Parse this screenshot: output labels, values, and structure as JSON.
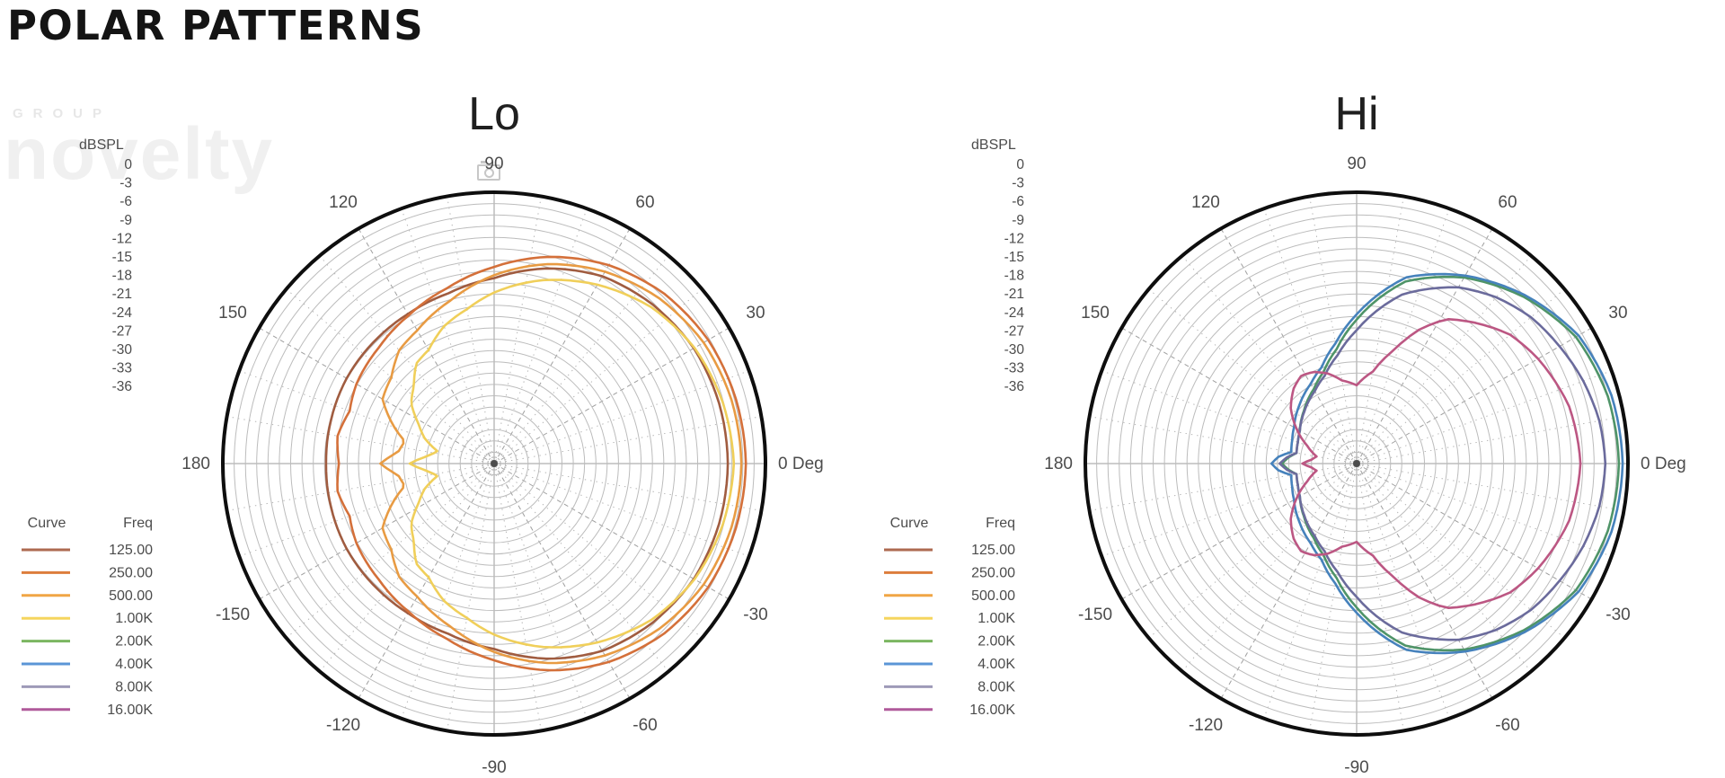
{
  "page_title": "POLAR PATTERNS",
  "watermark": {
    "top": "GROUP",
    "main": "novelty"
  },
  "radial_axis": {
    "label": "dBSPL",
    "ticks": [
      "0",
      "-3",
      "-6",
      "-9",
      "-12",
      "-15",
      "-18",
      "-21",
      "-24",
      "-27",
      "-30",
      "-33",
      "-36"
    ],
    "min_db": -36,
    "max_db": 0,
    "ring_step_db": 1.5
  },
  "angle_labels": [
    {
      "angle": 90,
      "label": "90"
    },
    {
      "angle": 60,
      "label": "60"
    },
    {
      "angle": 30,
      "label": "30"
    },
    {
      "angle": 0,
      "label": "0 Deg"
    },
    {
      "angle": -30,
      "label": "-30"
    },
    {
      "angle": -60,
      "label": "-60"
    },
    {
      "angle": -90,
      "label": "-90"
    },
    {
      "angle": -120,
      "label": "-120"
    },
    {
      "angle": -150,
      "label": "-150"
    },
    {
      "angle": 180,
      "label": "180"
    },
    {
      "angle": 150,
      "label": "150"
    },
    {
      "angle": 120,
      "label": "120"
    }
  ],
  "legend": {
    "curve_header": "Curve",
    "freq_header": "Freq",
    "entries": [
      {
        "freq": "125.00",
        "color": "#ad6a50"
      },
      {
        "freq": "250.00",
        "color": "#dd7d3c"
      },
      {
        "freq": "500.00",
        "color": "#f0a545"
      },
      {
        "freq": "1.00K",
        "color": "#f5d55e"
      },
      {
        "freq": "2.00K",
        "color": "#7bb661"
      },
      {
        "freq": "4.00K",
        "color": "#5b95d6"
      },
      {
        "freq": "8.00K",
        "color": "#9e9ab8"
      },
      {
        "freq": "16.00K",
        "color": "#b05a9b"
      }
    ]
  },
  "chart_data": [
    {
      "type": "line",
      "polar": true,
      "title": "Lo",
      "units": "dBSPL",
      "db_range": [
        -36,
        0
      ],
      "angle_grid_deg": 30,
      "series": [
        {
          "name": "125.00",
          "color": "#a05c40",
          "points_deg_db": [
            [
              0,
              -5.0
            ],
            [
              15,
              -5.1
            ],
            [
              30,
              -5.4
            ],
            [
              45,
              -6.2
            ],
            [
              60,
              -7.3
            ],
            [
              75,
              -9.2
            ],
            [
              90,
              -11.4
            ],
            [
              105,
              -12.6
            ],
            [
              120,
              -13.1
            ],
            [
              135,
              -13.3
            ],
            [
              150,
              -13.4
            ],
            [
              165,
              -13.6
            ],
            [
              180,
              -13.7
            ]
          ]
        },
        {
          "name": "250.00",
          "color": "#d4703a",
          "points_deg_db": [
            [
              0,
              -2.6
            ],
            [
              15,
              -2.8
            ],
            [
              30,
              -3.2
            ],
            [
              45,
              -4.1
            ],
            [
              60,
              -5.6
            ],
            [
              75,
              -7.6
            ],
            [
              90,
              -9.9
            ],
            [
              105,
              -11.9
            ],
            [
              120,
              -13.3
            ],
            [
              135,
              -14.3
            ],
            [
              150,
              -14.9
            ],
            [
              160,
              -15.6
            ],
            [
              170,
              -14.9
            ],
            [
              180,
              -15.4
            ]
          ]
        },
        {
          "name": "500.00",
          "color": "#e89b43",
          "points_deg_db": [
            [
              0,
              -3.2
            ],
            [
              15,
              -3.4
            ],
            [
              30,
              -3.9
            ],
            [
              45,
              -5.0
            ],
            [
              60,
              -6.6
            ],
            [
              75,
              -8.6
            ],
            [
              90,
              -11.0
            ],
            [
              105,
              -13.6
            ],
            [
              120,
              -15.6
            ],
            [
              130,
              -16.4
            ],
            [
              140,
              -18.2
            ],
            [
              150,
              -18.9
            ],
            [
              158,
              -21.3
            ],
            [
              166,
              -23.8
            ],
            [
              173,
              -23.2
            ],
            [
              180,
              -20.9
            ]
          ]
        },
        {
          "name": "1.00K",
          "color": "#f0cf5a",
          "points_deg_db": [
            [
              0,
              -4.2
            ],
            [
              15,
              -4.6
            ],
            [
              30,
              -5.3
            ],
            [
              45,
              -6.6
            ],
            [
              60,
              -8.6
            ],
            [
              75,
              -10.8
            ],
            [
              90,
              -13.3
            ],
            [
              100,
              -15.2
            ],
            [
              110,
              -16.6
            ],
            [
              120,
              -18.6
            ],
            [
              128,
              -19.2
            ],
            [
              136,
              -21.2
            ],
            [
              144,
              -22.4
            ],
            [
              152,
              -24.6
            ],
            [
              160,
              -26.2
            ],
            [
              168,
              -28.4
            ],
            [
              174,
              -27.0
            ],
            [
              180,
              -24.8
            ]
          ]
        }
      ]
    },
    {
      "type": "line",
      "polar": true,
      "title": "Hi",
      "units": "dBSPL",
      "db_range": [
        -36,
        0
      ],
      "angle_grid_deg": 30,
      "series": [
        {
          "name": "2.00K",
          "color": "#4f9468",
          "points_deg_db": [
            [
              0,
              -1.2
            ],
            [
              15,
              -1.5
            ],
            [
              30,
              -2.4
            ],
            [
              45,
              -4.7
            ],
            [
              60,
              -7.5
            ],
            [
              75,
              -11.0
            ],
            [
              90,
              -16.9
            ],
            [
              100,
              -20.6
            ],
            [
              110,
              -23.1
            ],
            [
              120,
              -24.6
            ],
            [
              135,
              -26.1
            ],
            [
              150,
              -27.3
            ],
            [
              160,
              -27.7
            ],
            [
              170,
              -27.9
            ],
            [
              175,
              -26.9
            ],
            [
              180,
              -26.1
            ]
          ]
        },
        {
          "name": "4.00K",
          "color": "#4682bc",
          "points_deg_db": [
            [
              0,
              -0.7
            ],
            [
              15,
              -1.0
            ],
            [
              30,
              -2.0
            ],
            [
              45,
              -4.4
            ],
            [
              60,
              -7.2
            ],
            [
              75,
              -10.4
            ],
            [
              90,
              -16.2
            ],
            [
              100,
              -19.8
            ],
            [
              110,
              -22.4
            ],
            [
              120,
              -23.8
            ],
            [
              135,
              -25.2
            ],
            [
              150,
              -26.4
            ],
            [
              160,
              -26.9
            ],
            [
              170,
              -27.2
            ],
            [
              175,
              -25.6
            ],
            [
              180,
              -24.7
            ]
          ]
        },
        {
          "name": "8.00K",
          "color": "#6b6b9c",
          "points_deg_db": [
            [
              0,
              -3.0
            ],
            [
              10,
              -3.3
            ],
            [
              20,
              -4.0
            ],
            [
              30,
              -4.9
            ],
            [
              40,
              -5.8
            ],
            [
              50,
              -7.2
            ],
            [
              60,
              -9.0
            ],
            [
              75,
              -12.8
            ],
            [
              90,
              -18.3
            ],
            [
              100,
              -21.4
            ],
            [
              110,
              -23.6
            ],
            [
              120,
              -24.9
            ],
            [
              135,
              -26.2
            ],
            [
              150,
              -27.3
            ],
            [
              160,
              -27.7
            ],
            [
              170,
              -27.9
            ],
            [
              175,
              -26.7
            ],
            [
              180,
              -25.8
            ]
          ]
        },
        {
          "name": "16.00K",
          "color": "#bc5783",
          "points_deg_db": [
            [
              0,
              -6.3
            ],
            [
              15,
              -6.8
            ],
            [
              30,
              -8.2
            ],
            [
              40,
              -9.4
            ],
            [
              50,
              -11.6
            ],
            [
              58,
              -13.4
            ],
            [
              65,
              -16.4
            ],
            [
              72,
              -20.2
            ],
            [
              80,
              -23.6
            ],
            [
              90,
              -25.6
            ],
            [
              100,
              -24.8
            ],
            [
              108,
              -23.4
            ],
            [
              115,
              -22.6
            ],
            [
              122,
              -22.2
            ],
            [
              130,
              -23.0
            ],
            [
              140,
              -24.6
            ],
            [
              150,
              -26.8
            ],
            [
              160,
              -29.0
            ],
            [
              170,
              -30.6
            ],
            [
              175,
              -30.0
            ],
            [
              180,
              -28.8
            ]
          ]
        }
      ]
    }
  ]
}
